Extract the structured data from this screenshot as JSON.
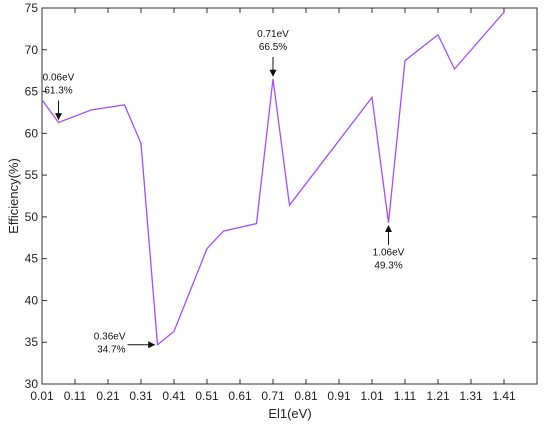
{
  "chart_data": {
    "type": "line",
    "title": "",
    "xlabel": "El1(eV)",
    "ylabel": "Efficiency(%)",
    "xlim": [
      0.01,
      1.51
    ],
    "ylim": [
      30,
      75
    ],
    "xticks": [
      0.01,
      0.11,
      0.21,
      0.31,
      0.41,
      0.51,
      0.61,
      0.71,
      0.81,
      0.91,
      1.01,
      1.11,
      1.21,
      1.31,
      1.41
    ],
    "xtick_labels": [
      "0.01",
      "0.11",
      "0.21",
      "0.31",
      "0.41",
      "0.51",
      "0.61",
      "0.71",
      "0.81",
      "0.91",
      "1.01",
      "1.11",
      "1.21",
      "1.31",
      "1.41"
    ],
    "yticks": [
      30,
      35,
      40,
      45,
      50,
      55,
      60,
      65,
      70,
      75
    ],
    "ytick_labels": [
      "30",
      "35",
      "40",
      "45",
      "50",
      "55",
      "60",
      "65",
      "70",
      "75"
    ],
    "grid": false,
    "line_color": "#a64dff",
    "series": [
      {
        "x": [
          0.01,
          0.06,
          0.16,
          0.26,
          0.31,
          0.36,
          0.41,
          0.51,
          0.56,
          0.66,
          0.71,
          0.76,
          1.01,
          1.06,
          1.11,
          1.21,
          1.26,
          1.41
        ],
        "y": [
          64.0,
          61.3,
          62.8,
          63.4,
          58.8,
          34.7,
          36.3,
          46.2,
          48.3,
          49.2,
          66.5,
          51.4,
          64.3,
          49.3,
          68.7,
          71.8,
          67.7,
          74.5
        ]
      }
    ],
    "annotations": [
      {
        "line1": "0.06eV",
        "line2": "61.3%",
        "x": 0.06,
        "y": 61.3,
        "side": "above"
      },
      {
        "line1": "0.71eV",
        "line2": "66.5%",
        "x": 0.71,
        "y": 66.5,
        "side": "above"
      },
      {
        "line1": "0.36eV",
        "line2": "34.7%",
        "x": 0.36,
        "y": 34.7,
        "side": "left"
      },
      {
        "line1": "1.06eV",
        "line2": "49.3%",
        "x": 1.06,
        "y": 49.3,
        "side": "below"
      }
    ]
  }
}
